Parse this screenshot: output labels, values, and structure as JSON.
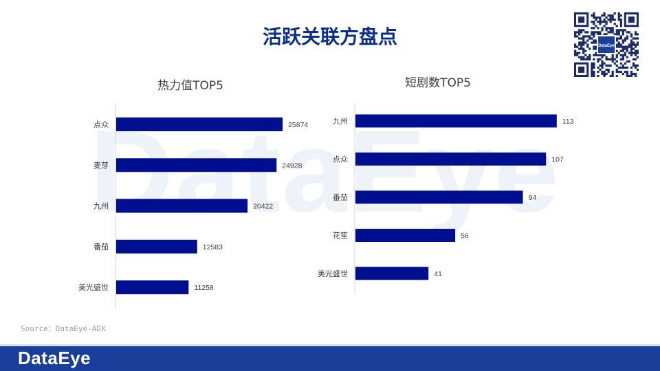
{
  "page": {
    "title": "活跃关联方盘点",
    "watermark": "DataEye",
    "source": "Source：DataEye-ADX",
    "footer_logo": "DataEye",
    "qr_center_text": "DataEye"
  },
  "colors": {
    "bar": "#000f8f",
    "title": "#0b2d8c",
    "footer": "#1a3e9a"
  },
  "chart_data": [
    {
      "type": "bar",
      "orientation": "horizontal",
      "title": "热力值TOP5",
      "categories": [
        "点众",
        "麦芽",
        "九州",
        "番茄",
        "美光盛世"
      ],
      "values": [
        25874,
        24928,
        20422,
        12583,
        11258
      ],
      "xlim": [
        0,
        28000
      ],
      "grid": false,
      "legend": "none"
    },
    {
      "type": "bar",
      "orientation": "horizontal",
      "title": "短剧数TOP5",
      "categories": [
        "九州",
        "点众",
        "番茄",
        "花笙",
        "美光盛世"
      ],
      "values": [
        113,
        107,
        94,
        56,
        41
      ],
      "xlim": [
        0,
        115
      ],
      "grid": false,
      "legend": "none"
    }
  ]
}
